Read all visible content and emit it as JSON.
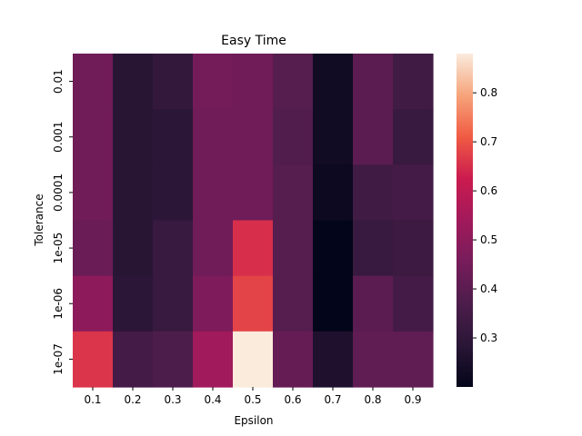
{
  "chart_data": {
    "type": "heatmap",
    "title": "Easy Time",
    "xlabel": "Epsilon",
    "ylabel": "Tolerance",
    "x_categories": [
      "0.1",
      "0.2",
      "0.3",
      "0.4",
      "0.5",
      "0.6",
      "0.7",
      "0.8",
      "0.9"
    ],
    "y_categories": [
      "0.01",
      "0.001",
      "0.0001",
      "1e-05",
      "1e-06",
      "1e-07"
    ],
    "values": [
      [
        0.44,
        0.28,
        0.31,
        0.45,
        0.44,
        0.39,
        0.23,
        0.4,
        0.34
      ],
      [
        0.44,
        0.28,
        0.29,
        0.44,
        0.44,
        0.38,
        0.23,
        0.4,
        0.32
      ],
      [
        0.44,
        0.28,
        0.29,
        0.44,
        0.44,
        0.39,
        0.22,
        0.34,
        0.35
      ],
      [
        0.43,
        0.28,
        0.32,
        0.44,
        0.65,
        0.39,
        0.2,
        0.32,
        0.33
      ],
      [
        0.5,
        0.29,
        0.32,
        0.47,
        0.68,
        0.39,
        0.2,
        0.4,
        0.35
      ],
      [
        0.66,
        0.35,
        0.37,
        0.54,
        0.88,
        0.42,
        0.26,
        0.41,
        0.41
      ]
    ],
    "colorbar": {
      "min": 0.2,
      "max": 0.88,
      "ticks": [
        "0.3",
        "0.4",
        "0.5",
        "0.6",
        "0.7",
        "0.8"
      ]
    },
    "colormap": "rocket",
    "grid": false,
    "legend": "colorbar-right"
  }
}
